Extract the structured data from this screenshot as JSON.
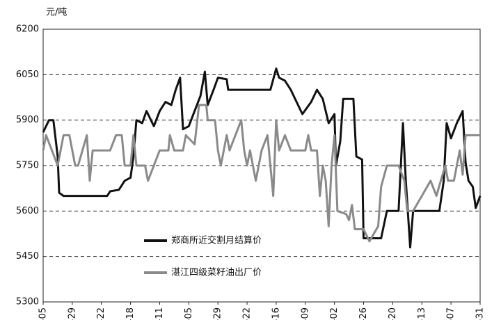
{
  "chart_data": {
    "type": "line",
    "y_label": "元/吨",
    "x": [],
    "xlim": [
      0,
      15
    ],
    "xticks": [
      {
        "value": 0,
        "label": "-05"
      },
      {
        "value": 1,
        "label": "-29"
      },
      {
        "value": 2,
        "label": "-22"
      },
      {
        "value": 3,
        "label": "-18"
      },
      {
        "value": 4,
        "label": "-11"
      },
      {
        "value": 5,
        "label": "-05"
      },
      {
        "value": 6,
        "label": "-29"
      },
      {
        "value": 7,
        "label": "-22"
      },
      {
        "value": 8,
        "label": "-16"
      },
      {
        "value": 9,
        "label": "-09"
      },
      {
        "value": 10,
        "label": "-02"
      },
      {
        "value": 11,
        "label": "-26"
      },
      {
        "value": 12,
        "label": "-20"
      },
      {
        "value": 13,
        "label": "-13"
      },
      {
        "value": 14,
        "label": "-07"
      },
      {
        "value": 15,
        "label": "-31"
      }
    ],
    "ylim": [
      5300,
      6200
    ],
    "yticks": [
      5300,
      5450,
      5600,
      5750,
      5900,
      6050,
      6200
    ],
    "grid": true,
    "series": [
      {
        "name": "郑商所近交割月结算价",
        "color": "#111111",
        "x": [
          0,
          0.2,
          0.35,
          0.5,
          0.55,
          0.7,
          2.2,
          2.3,
          2.6,
          2.8,
          3.0,
          3.1,
          3.2,
          3.4,
          3.55,
          3.8,
          4.0,
          4.2,
          4.4,
          4.55,
          4.7,
          4.8,
          5.0,
          5.2,
          5.4,
          5.55,
          5.65,
          5.85,
          6.0,
          6.3,
          6.35,
          7.8,
          8.0,
          8.1,
          8.3,
          8.5,
          8.7,
          8.9,
          9.2,
          9.4,
          9.6,
          9.8,
          10.0,
          10.05,
          10.2,
          10.3,
          10.65,
          10.75,
          10.95,
          11.0,
          11.6,
          11.8,
          12.2,
          12.35,
          12.45,
          12.6,
          12.7,
          13.6,
          13.75,
          13.85,
          14.0,
          14.2,
          14.4,
          14.5,
          14.6,
          14.75,
          14.85,
          15.0
        ],
        "values": [
          5860,
          5900,
          5900,
          5780,
          5660,
          5650,
          5650,
          5665,
          5670,
          5700,
          5710,
          5780,
          5900,
          5890,
          5930,
          5880,
          5930,
          5960,
          5950,
          6000,
          6040,
          5870,
          5880,
          5930,
          5980,
          6060,
          5950,
          6000,
          6040,
          6035,
          6000,
          6000,
          6070,
          6040,
          6030,
          6000,
          5960,
          5920,
          5960,
          6000,
          5970,
          5890,
          5920,
          5750,
          5830,
          5970,
          5970,
          5780,
          5770,
          5510,
          5510,
          5600,
          5600,
          5890,
          5700,
          5480,
          5600,
          5600,
          5700,
          5890,
          5840,
          5890,
          5930,
          5760,
          5700,
          5680,
          5610,
          5650
        ]
      },
      {
        "name": "湛江四级菜籽油出厂价",
        "color": "#8a8a8a",
        "x": [
          0,
          0.1,
          0.3,
          0.5,
          0.6,
          0.7,
          0.9,
          1.0,
          1.1,
          1.2,
          1.35,
          1.5,
          1.6,
          1.7,
          2.3,
          2.5,
          2.7,
          2.8,
          3.0,
          3.1,
          3.2,
          3.5,
          3.6,
          3.8,
          4.0,
          4.3,
          4.35,
          4.5,
          4.8,
          4.9,
          5.2,
          5.35,
          5.6,
          5.65,
          5.9,
          6.0,
          6.1,
          6.3,
          6.4,
          6.6,
          6.8,
          6.9,
          7.0,
          7.1,
          7.3,
          7.5,
          7.7,
          7.9,
          8.0,
          8.1,
          8.3,
          8.5,
          9.0,
          9.1,
          9.2,
          9.4,
          9.5,
          9.6,
          9.7,
          9.8,
          9.9,
          10.0,
          10.1,
          10.4,
          10.5,
          10.6,
          10.7,
          11.0,
          11.2,
          11.5,
          11.6,
          11.8,
          12.2,
          12.4,
          12.5,
          12.7,
          13.0,
          13.3,
          13.5,
          13.8,
          13.9,
          14.1,
          14.3,
          14.4,
          14.5,
          15.0
        ],
        "values": [
          5800,
          5850,
          5800,
          5750,
          5800,
          5850,
          5850,
          5800,
          5750,
          5750,
          5800,
          5850,
          5700,
          5800,
          5800,
          5850,
          5850,
          5750,
          5750,
          5850,
          5750,
          5750,
          5700,
          5750,
          5800,
          5800,
          5850,
          5800,
          5800,
          5850,
          5820,
          5950,
          5950,
          5900,
          5900,
          5800,
          5750,
          5850,
          5800,
          5850,
          5900,
          5800,
          5750,
          5800,
          5700,
          5800,
          5850,
          5650,
          5900,
          5800,
          5850,
          5800,
          5800,
          5850,
          5800,
          5800,
          5650,
          5750,
          5700,
          5550,
          5750,
          5850,
          5600,
          5590,
          5570,
          5620,
          5540,
          5540,
          5500,
          5550,
          5680,
          5750,
          5750,
          5700,
          5600,
          5600,
          5650,
          5700,
          5650,
          5750,
          5700,
          5700,
          5800,
          5720,
          5850,
          5850
        ]
      }
    ]
  }
}
